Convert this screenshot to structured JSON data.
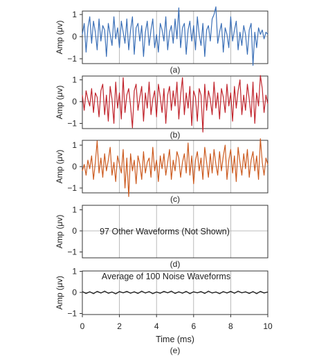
{
  "colors": {
    "panel_a": "#3a6fb7",
    "panel_b": "#c0232b",
    "panel_c": "#cc5a1f",
    "panel_d": "#ffffff",
    "panel_e": "#1a1a1a",
    "grid": "#a8a8a8",
    "frame": "#333333"
  },
  "chart_data": [
    {
      "type": "line",
      "panel_label": "(a)",
      "ylabel": "Amp (μv)",
      "xlim": [
        0,
        10
      ],
      "ylim": [
        -1.3,
        1.3
      ],
      "yticks": [
        -1,
        0,
        1
      ],
      "series": [
        {
          "color_key": "panel_a",
          "x": [
            0,
            0.1,
            0.2,
            0.3,
            0.4,
            0.5,
            0.6,
            0.7,
            0.8,
            0.9,
            1.0,
            1.1,
            1.2,
            1.3,
            1.4,
            1.5,
            1.6,
            1.7,
            1.8,
            1.9,
            2.0,
            2.1,
            2.2,
            2.3,
            2.4,
            2.5,
            2.6,
            2.7,
            2.8,
            2.9,
            3.0,
            3.1,
            3.2,
            3.3,
            3.4,
            3.5,
            3.6,
            3.7,
            3.8,
            3.9,
            4.0,
            4.1,
            4.2,
            4.3,
            4.4,
            4.5,
            4.6,
            4.7,
            4.8,
            4.9,
            5.0,
            5.1,
            5.2,
            5.3,
            5.4,
            5.5,
            5.6,
            5.7,
            5.8,
            5.9,
            6.0,
            6.1,
            6.2,
            6.3,
            6.4,
            6.5,
            6.6,
            6.7,
            6.8,
            6.9,
            7.0,
            7.1,
            7.2,
            7.3,
            7.4,
            7.5,
            7.6,
            7.7,
            7.8,
            7.9,
            8.0,
            8.1,
            8.2,
            8.3,
            8.4,
            8.5,
            8.6,
            8.7,
            8.8,
            8.9,
            9.0,
            9.1,
            9.2,
            9.3,
            9.4,
            9.5,
            9.6,
            9.7,
            9.8,
            9.9,
            10.0
          ],
          "y": [
            0.1,
            0.6,
            -0.7,
            0.4,
            0.9,
            -0.3,
            0.7,
            0.2,
            -0.6,
            0.8,
            -0.2,
            0.5,
            0.3,
            -0.9,
            0.6,
            0.1,
            -0.4,
            0.9,
            -0.1,
            0.4,
            -0.5,
            0.7,
            0.2,
            -0.3,
            0.8,
            -0.6,
            0.3,
            0.9,
            -0.8,
            0.4,
            0.6,
            -0.2,
            0.5,
            -0.9,
            0.2,
            0.7,
            -0.4,
            0.3,
            0.8,
            -0.5,
            0.1,
            -0.7,
            0.6,
            0.3,
            -0.2,
            0.9,
            -0.6,
            0.2,
            0.5,
            -0.3,
            0.8,
            -0.1,
            1.3,
            -0.5,
            0.4,
            0.6,
            -0.8,
            0.3,
            0.7,
            -0.2,
            0.5,
            -0.6,
            0.9,
            0.1,
            -0.4,
            0.6,
            -0.9,
            0.3,
            0.5,
            -0.2,
            0.8,
            1.0,
            1.35,
            -0.3,
            0.2,
            0.6,
            -0.7,
            0.4,
            0.1,
            -0.5,
            0.9,
            -0.2,
            0.3,
            0.7,
            -0.6,
            0.2,
            -0.4,
            0.5,
            0.1,
            -0.8,
            0.3,
            0.6,
            -1.3,
            0.2,
            -0.5,
            0.4,
            0.1,
            0.3,
            -0.1,
            0.2,
            0.1
          ]
        }
      ]
    },
    {
      "type": "line",
      "panel_label": "(b)",
      "ylabel": "Amp (μv)",
      "xlim": [
        0,
        10
      ],
      "ylim": [
        -1.3,
        1.3
      ],
      "yticks": [
        -1,
        0,
        1
      ],
      "series": [
        {
          "color_key": "panel_b",
          "x": [
            0,
            0.1,
            0.2,
            0.3,
            0.4,
            0.5,
            0.6,
            0.7,
            0.8,
            0.9,
            1.0,
            1.1,
            1.2,
            1.3,
            1.4,
            1.5,
            1.6,
            1.7,
            1.8,
            1.9,
            2.0,
            2.1,
            2.2,
            2.3,
            2.4,
            2.5,
            2.6,
            2.7,
            2.8,
            2.9,
            3.0,
            3.1,
            3.2,
            3.3,
            3.4,
            3.5,
            3.6,
            3.7,
            3.8,
            3.9,
            4.0,
            4.1,
            4.2,
            4.3,
            4.4,
            4.5,
            4.6,
            4.7,
            4.8,
            4.9,
            5.0,
            5.1,
            5.2,
            5.3,
            5.4,
            5.5,
            5.6,
            5.7,
            5.8,
            5.9,
            6.0,
            6.1,
            6.2,
            6.3,
            6.4,
            6.5,
            6.6,
            6.7,
            6.8,
            6.9,
            7.0,
            7.1,
            7.2,
            7.3,
            7.4,
            7.5,
            7.6,
            7.7,
            7.8,
            7.9,
            8.0,
            8.1,
            8.2,
            8.3,
            8.4,
            8.5,
            8.6,
            8.7,
            8.8,
            8.9,
            9.0,
            9.1,
            9.2,
            9.3,
            9.4,
            9.5,
            9.6,
            9.7,
            9.8,
            9.9,
            10.0
          ],
          "y": [
            0.3,
            -0.4,
            0.5,
            0.1,
            -0.2,
            0.6,
            -0.5,
            0.4,
            0.2,
            -0.7,
            0.5,
            0.8,
            -0.6,
            0.3,
            -0.9,
            0.7,
            0.1,
            -1.0,
            0.9,
            -0.3,
            0.4,
            -0.8,
            1.1,
            -0.5,
            0.3,
            0.6,
            -0.2,
            -1.2,
            0.5,
            0.8,
            -0.4,
            0.2,
            0.7,
            -0.9,
            0.4,
            -0.3,
            0.9,
            -0.6,
            0.1,
            0.5,
            -0.7,
            0.8,
            0.2,
            -0.5,
            0.6,
            -1.0,
            0.3,
            0.7,
            -0.4,
            0.5,
            -0.2,
            0.9,
            -0.8,
            0.3,
            1.1,
            -0.6,
            0.4,
            -0.3,
            0.7,
            -1.1,
            0.5,
            0.2,
            -0.9,
            0.6,
            0.3,
            -1.4,
            0.8,
            -0.4,
            0.5,
            0.1,
            -0.6,
            0.9,
            -0.3,
            0.4,
            -0.8,
            0.6,
            0.2,
            -0.5,
            0.8,
            -0.2,
            0.4,
            -0.9,
            0.7,
            -0.3,
            0.5,
            1.0,
            -0.6,
            0.3,
            -0.4,
            0.8,
            0.1,
            -0.7,
            0.9,
            -1.0,
            0.4,
            -0.2,
            1.2,
            0.6,
            -0.5,
            0.3,
            -0.1
          ]
        }
      ]
    },
    {
      "type": "line",
      "panel_label": "(c)",
      "ylabel": "Amp (μv)",
      "xlim": [
        0,
        10
      ],
      "ylim": [
        -1.3,
        1.3
      ],
      "yticks": [
        -1,
        0,
        1
      ],
      "series": [
        {
          "color_key": "panel_c",
          "x": [
            0,
            0.1,
            0.2,
            0.3,
            0.4,
            0.5,
            0.6,
            0.7,
            0.8,
            0.9,
            1.0,
            1.1,
            1.2,
            1.3,
            1.4,
            1.5,
            1.6,
            1.7,
            1.8,
            1.9,
            2.0,
            2.1,
            2.2,
            2.3,
            2.4,
            2.5,
            2.6,
            2.7,
            2.8,
            2.9,
            3.0,
            3.1,
            3.2,
            3.3,
            3.4,
            3.5,
            3.6,
            3.7,
            3.8,
            3.9,
            4.0,
            4.1,
            4.2,
            4.3,
            4.4,
            4.5,
            4.6,
            4.7,
            4.8,
            4.9,
            5.0,
            5.1,
            5.2,
            5.3,
            5.4,
            5.5,
            5.6,
            5.7,
            5.8,
            5.9,
            6.0,
            6.1,
            6.2,
            6.3,
            6.4,
            6.5,
            6.6,
            6.7,
            6.8,
            6.9,
            7.0,
            7.1,
            7.2,
            7.3,
            7.4,
            7.5,
            7.6,
            7.7,
            7.8,
            7.9,
            8.0,
            8.1,
            8.2,
            8.3,
            8.4,
            8.5,
            8.6,
            8.7,
            8.8,
            8.9,
            9.0,
            9.1,
            9.2,
            9.3,
            9.4,
            9.5,
            9.6,
            9.7,
            9.8,
            9.9,
            10.0
          ],
          "y": [
            -0.2,
            0.1,
            -0.4,
            0.3,
            -0.1,
            0.5,
            -0.6,
            0.2,
            1.2,
            -0.3,
            0.4,
            -0.5,
            0.6,
            -0.2,
            0.3,
            0.9,
            -0.4,
            0.2,
            -0.7,
            0.5,
            0.1,
            -0.3,
            0.8,
            -1.0,
            0.4,
            -1.4,
            0.6,
            -0.2,
            0.3,
            -0.8,
            0.5,
            0.1,
            -0.6,
            0.7,
            -0.3,
            0.2,
            0.4,
            -0.5,
            0.9,
            -0.2,
            0.3,
            -0.7,
            0.5,
            -0.1,
            0.6,
            -0.4,
            0.2,
            0.8,
            -0.6,
            0.3,
            -0.2,
            0.7,
            0.4,
            -0.5,
            0.2,
            0.6,
            -0.3,
            1.1,
            -0.4,
            0.5,
            -0.8,
            0.3,
            0.7,
            -0.2,
            0.4,
            -0.6,
            0.9,
            0.2,
            -0.5,
            0.6,
            -0.3,
            0.8,
            0.1,
            -0.4,
            0.7,
            -0.2,
            0.5,
            1.0,
            -0.6,
            0.3,
            0.8,
            -0.3,
            0.5,
            -0.7,
            0.9,
            0.2,
            -0.4,
            0.6,
            -0.1,
            0.8,
            -0.5,
            0.3,
            0.7,
            -0.2,
            0.5,
            -0.6,
            1.3,
            0.2,
            -0.4,
            0.4,
            0.1
          ]
        }
      ]
    },
    {
      "type": "line",
      "panel_label": "(d)",
      "ylabel": "Amp (μv)",
      "annotation": "97 Other Waveforms (Not Shown)",
      "xlim": [
        0,
        10
      ],
      "ylim": [
        -1.3,
        1.3
      ],
      "yticks": [
        -1,
        0,
        1
      ],
      "series": []
    },
    {
      "type": "line",
      "panel_label": "(e)",
      "ylabel": "Amp (μv)",
      "xlabel": "Time (ms)",
      "annotation": "Average of 100 Noise Waveforms",
      "xlim": [
        0,
        10
      ],
      "ylim": [
        -1.3,
        1.3
      ],
      "yticks": [
        -1,
        0,
        1
      ],
      "xticks": [
        0,
        2,
        4,
        6,
        8,
        10
      ],
      "series": [
        {
          "color_key": "panel_e",
          "x": [
            0,
            0.2,
            0.4,
            0.6,
            0.8,
            1.0,
            1.2,
            1.4,
            1.6,
            1.8,
            2.0,
            2.2,
            2.4,
            2.6,
            2.8,
            3.0,
            3.2,
            3.4,
            3.6,
            3.8,
            4.0,
            4.2,
            4.4,
            4.6,
            4.8,
            5.0,
            5.2,
            5.4,
            5.6,
            5.8,
            6.0,
            6.2,
            6.4,
            6.6,
            6.8,
            7.0,
            7.2,
            7.4,
            7.6,
            7.8,
            8.0,
            8.2,
            8.4,
            8.6,
            8.8,
            9.0,
            9.2,
            9.4,
            9.6,
            9.8,
            10.0
          ],
          "y": [
            0.04,
            -0.05,
            0.03,
            -0.06,
            0.05,
            -0.03,
            0.06,
            -0.04,
            0.02,
            -0.07,
            0.04,
            -0.02,
            0.05,
            -0.04,
            0.03,
            -0.05,
            0.06,
            -0.03,
            0.04,
            -0.06,
            0.02,
            -0.04,
            0.05,
            -0.02,
            0.06,
            -0.05,
            0.03,
            -0.04,
            0.05,
            -0.06,
            0.03,
            -0.02,
            0.04,
            -0.05,
            0.06,
            -0.03,
            0.02,
            -0.06,
            0.04,
            -0.03,
            0.05,
            -0.04,
            0.06,
            -0.02,
            0.03,
            -0.05,
            0.04,
            -0.06,
            0.05,
            -0.03,
            0.02
          ]
        }
      ]
    }
  ]
}
